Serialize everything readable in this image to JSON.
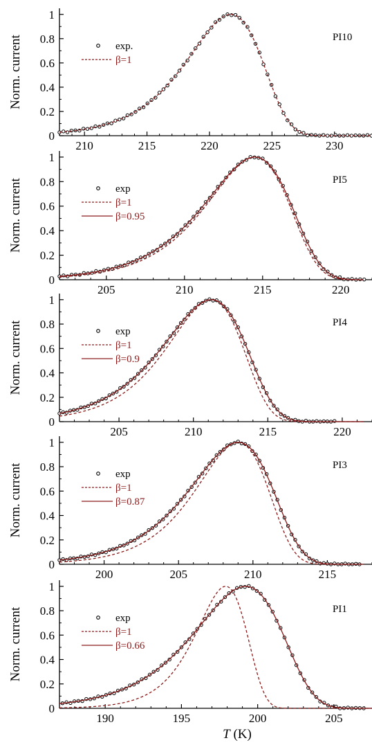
{
  "figure": {
    "ylabel": "Norm. current",
    "xlabel_italic": "T",
    "xlabel_unit": " (K)"
  },
  "colors": {
    "axis": "#000000",
    "exp": "#000000",
    "model": "#8b1a1a"
  },
  "chart_data": [
    {
      "type": "line",
      "panel_label": "PI10",
      "xlim": [
        208,
        233
      ],
      "ylim": [
        0,
        1.05
      ],
      "xticks": [
        210,
        215,
        220,
        225,
        230
      ],
      "yticks": [
        0,
        0.2,
        0.4,
        0.6,
        0.8,
        1
      ],
      "ytick_labels": [
        "0",
        "0.2",
        "0.4",
        "0.6",
        "0.8",
        "1"
      ],
      "legend": [
        {
          "label": "exp.",
          "style": "circle"
        },
        {
          "label": "β=1",
          "style": "dashed"
        }
      ],
      "series": [
        {
          "name": "exp.",
          "style": "circle",
          "peak": 221.7,
          "w": 3.0,
          "beta": 1,
          "x_range": [
            208,
            233
          ],
          "step": 0.32
        },
        {
          "name": "β=1",
          "style": "dashed",
          "peak": 221.7,
          "w": 3.0,
          "beta": 1,
          "x_range": [
            208,
            233
          ]
        }
      ]
    },
    {
      "type": "line",
      "panel_label": "PI5",
      "xlim": [
        202,
        222
      ],
      "ylim": [
        0,
        1.05
      ],
      "xticks": [
        205,
        210,
        215,
        220
      ],
      "yticks": [
        0,
        0.2,
        0.4,
        0.6,
        0.8,
        1
      ],
      "ytick_labels": [
        "0",
        "0.2",
        "0.4",
        "0.6",
        "0.8",
        "1"
      ],
      "legend": [
        {
          "label": "exp",
          "style": "circle"
        },
        {
          "label": "β=1",
          "style": "dashed"
        },
        {
          "label": "β=0.95",
          "style": "solid"
        }
      ],
      "series": [
        {
          "name": "exp",
          "style": "circle",
          "peak": 214.5,
          "w": 2.6,
          "beta": 0.95,
          "x_range": [
            202,
            221.5
          ],
          "step": 0.26
        },
        {
          "name": "β=1",
          "style": "dashed",
          "peak": 214.5,
          "w": 2.6,
          "beta": 1,
          "x_range": [
            202,
            221.5
          ]
        },
        {
          "name": "β=0.95",
          "style": "solid",
          "peak": 214.5,
          "w": 2.6,
          "beta": 0.95,
          "x_range": [
            202,
            221.5
          ]
        }
      ]
    },
    {
      "type": "line",
      "panel_label": "PI4",
      "xlim": [
        201,
        222
      ],
      "ylim": [
        0,
        1.05
      ],
      "xticks": [
        205,
        210,
        215,
        220
      ],
      "yticks": [
        0,
        0.2,
        0.4,
        0.6,
        0.8,
        1
      ],
      "ytick_labels": [
        "0",
        "0.2",
        "0.4",
        "0.6",
        "0.8",
        "1"
      ],
      "legend": [
        {
          "label": "exp",
          "style": "circle"
        },
        {
          "label": "β=1",
          "style": "dashed"
        },
        {
          "label": "β=0.9",
          "style": "solid"
        }
      ],
      "series": [
        {
          "name": "exp",
          "style": "circle",
          "peak": 211.2,
          "w": 2.5,
          "beta": 0.9,
          "x_range": [
            201,
            219.5
          ],
          "step": 0.24
        },
        {
          "name": "β=1",
          "style": "dashed",
          "peak": 211.2,
          "w": 2.5,
          "beta": 1,
          "x_range": [
            201,
            221.5
          ]
        },
        {
          "name": "β=0.9",
          "style": "solid",
          "peak": 211.2,
          "w": 2.5,
          "beta": 0.9,
          "x_range": [
            201,
            221.5
          ]
        }
      ]
    },
    {
      "type": "line",
      "panel_label": "PI3",
      "xlim": [
        197,
        218
      ],
      "ylim": [
        0,
        1.05
      ],
      "xticks": [
        200,
        205,
        210,
        215
      ],
      "yticks": [
        0,
        0.2,
        0.4,
        0.6,
        0.8,
        1
      ],
      "ytick_labels": [
        "0",
        "0.2",
        "0.4",
        "0.6",
        "0.8",
        "1"
      ],
      "legend": [
        {
          "label": "exp",
          "style": "circle"
        },
        {
          "label": "β=1",
          "style": "dashed"
        },
        {
          "label": "β=0.87",
          "style": "solid"
        }
      ],
      "series": [
        {
          "name": "exp",
          "style": "circle",
          "peak": 209.0,
          "w": 2.4,
          "beta": 0.87,
          "x_range": [
            197,
            217.2
          ],
          "step": 0.24
        },
        {
          "name": "β=1",
          "style": "dashed",
          "peak": 209.0,
          "w": 2.4,
          "beta": 1,
          "x_range": [
            197,
            217.5
          ]
        },
        {
          "name": "β=0.87",
          "style": "solid",
          "peak": 209.0,
          "w": 2.4,
          "beta": 0.87,
          "x_range": [
            197,
            217.5
          ]
        }
      ]
    },
    {
      "type": "line",
      "panel_label": "PI1",
      "xlim": [
        187,
        207.5
      ],
      "ylim": [
        0,
        1.05
      ],
      "xticks": [
        190,
        195,
        200,
        205
      ],
      "yticks": [
        0,
        0.2,
        0.4,
        0.6,
        0.8,
        1
      ],
      "ytick_labels": [
        "0",
        "0.2",
        "0.4",
        "0.6",
        "0.8",
        "1"
      ],
      "legend": [
        {
          "label": "exp",
          "style": "circle"
        },
        {
          "label": "β=1",
          "style": "dashed"
        },
        {
          "label": "β=0.66",
          "style": "solid"
        }
      ],
      "series": [
        {
          "name": "exp",
          "style": "circle",
          "peak": 199.2,
          "w": 1.9,
          "beta": 0.66,
          "x_range": [
            187.2,
            207
          ],
          "step": 0.26
        },
        {
          "name": "β=1",
          "style": "dashed",
          "peak": 197.9,
          "w": 1.65,
          "beta": 1,
          "x_range": [
            187,
            207.5
          ]
        },
        {
          "name": "β=0.66",
          "style": "solid",
          "peak": 199.2,
          "w": 1.9,
          "beta": 0.66,
          "x_range": [
            187,
            207.5
          ]
        }
      ]
    }
  ]
}
